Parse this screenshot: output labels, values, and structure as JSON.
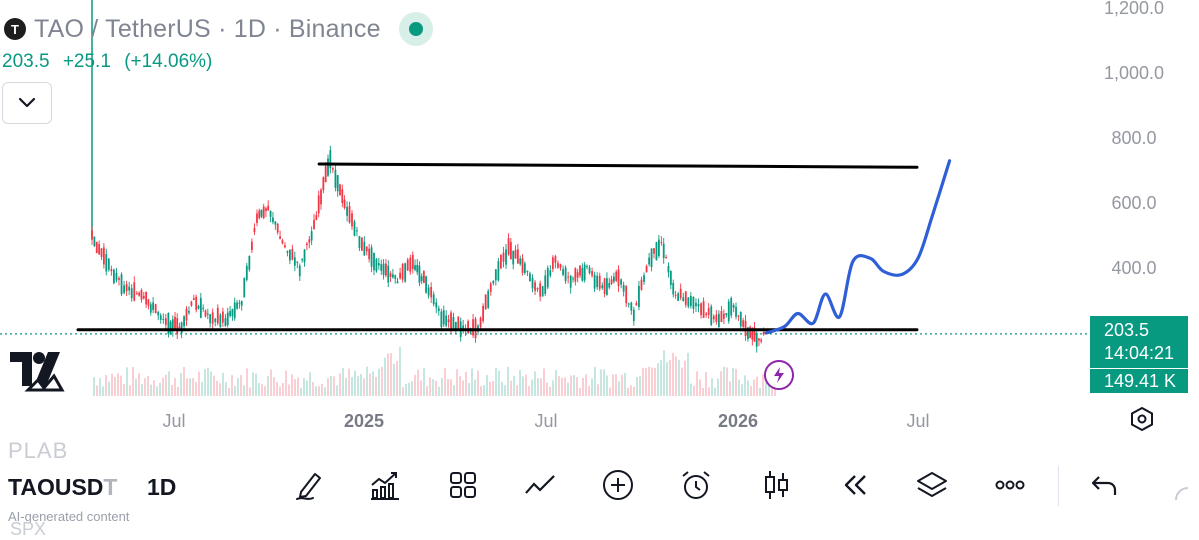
{
  "header": {
    "title": "TAO / TetherUS · 1D · Binance",
    "logo_letter": "T",
    "price": "203.5",
    "change": "+25.1",
    "change_pct": "(+14.06%)"
  },
  "price_tags": {
    "last_price": "203.5",
    "countdown": "14:04:21",
    "volume": "149.41 K"
  },
  "chart_data": {
    "type": "line",
    "x_axis_labels": [
      "Jul",
      "2025",
      "Jul",
      "2026",
      "Jul"
    ],
    "y_axis_labels": [
      "1,200.0",
      "1,000.0",
      "800.0",
      "600.0",
      "400.0"
    ],
    "y_axis_values": [
      1200,
      1000,
      800,
      600,
      400
    ],
    "ylim": [
      0,
      1230
    ],
    "last_price": 203.5,
    "series": [
      {
        "role": "price",
        "x": [
          "2024-04-11",
          "2024-04-25",
          "2024-05-10",
          "2024-05-25",
          "2024-06-10",
          "2024-06-25",
          "2024-07-08",
          "2024-07-20",
          "2024-08-05",
          "2024-08-20",
          "2024-09-05",
          "2024-09-20",
          "2024-10-01",
          "2024-10-15",
          "2024-11-01",
          "2024-11-15",
          "2024-12-01",
          "2024-12-06",
          "2024-12-15",
          "2025-01-01",
          "2025-01-20",
          "2025-02-05",
          "2025-02-20",
          "2025-03-05",
          "2025-03-20",
          "2025-04-08",
          "2025-04-25",
          "2025-05-10",
          "2025-05-25",
          "2025-06-10",
          "2025-06-25",
          "2025-07-10",
          "2025-07-25",
          "2025-08-10",
          "2025-08-25",
          "2025-09-10",
          "2025-09-25",
          "2025-10-10",
          "2025-10-22",
          "2025-11-05",
          "2025-11-20",
          "2025-12-05",
          "2025-12-20",
          "2026-01-01",
          "2026-01-15",
          "2026-01-28",
          "2026-02-02"
        ],
        "y": [
          490,
          420,
          350,
          320,
          280,
          230,
          215,
          300,
          250,
          240,
          300,
          550,
          590,
          480,
          400,
          530,
          740,
          680,
          600,
          470,
          400,
          360,
          420,
          350,
          250,
          220,
          210,
          360,
          460,
          400,
          320,
          420,
          360,
          400,
          340,
          370,
          260,
          420,
          480,
          320,
          300,
          260,
          240,
          290,
          200,
          180,
          203.5
        ]
      },
      {
        "role": "projection",
        "x": [
          "2026-02-02",
          "2026-02-20",
          "2026-03-05",
          "2026-03-20",
          "2026-04-01",
          "2026-04-15",
          "2026-04-28",
          "2026-05-15",
          "2026-05-28",
          "2026-06-15",
          "2026-07-01",
          "2026-07-15",
          "2026-08-01"
        ],
        "y": [
          200,
          220,
          260,
          230,
          320,
          250,
          420,
          430,
          390,
          380,
          430,
          560,
          730
        ]
      }
    ],
    "horizontal_levels": [
      {
        "role": "resistance",
        "from": "2024-11-20",
        "to": "2026-06-30",
        "start_value": 720,
        "end_value": 710
      },
      {
        "role": "support",
        "from": "2024-04-01",
        "to": "2026-06-30",
        "value": 210
      }
    ]
  },
  "toolbar": {
    "ghost_top": "PLAB",
    "symbol": "TAOUSD",
    "symbol_fade": "T",
    "interval": "1D",
    "ai_note": "AI-generated content",
    "ghost_bottom": "SPX",
    "icons": [
      "draw-pen-icon",
      "indicators-icon",
      "grid-layout-icon",
      "compare-icon",
      "add-icon",
      "alarm-icon",
      "candles-icon",
      "replay-icon",
      "layers-icon",
      "more-icon",
      "undo-icon"
    ]
  },
  "colors": {
    "up": "#089981",
    "down": "#f23645",
    "projection": "#2f5fd6",
    "level": "#000000",
    "axis_text": "#9598a1"
  }
}
